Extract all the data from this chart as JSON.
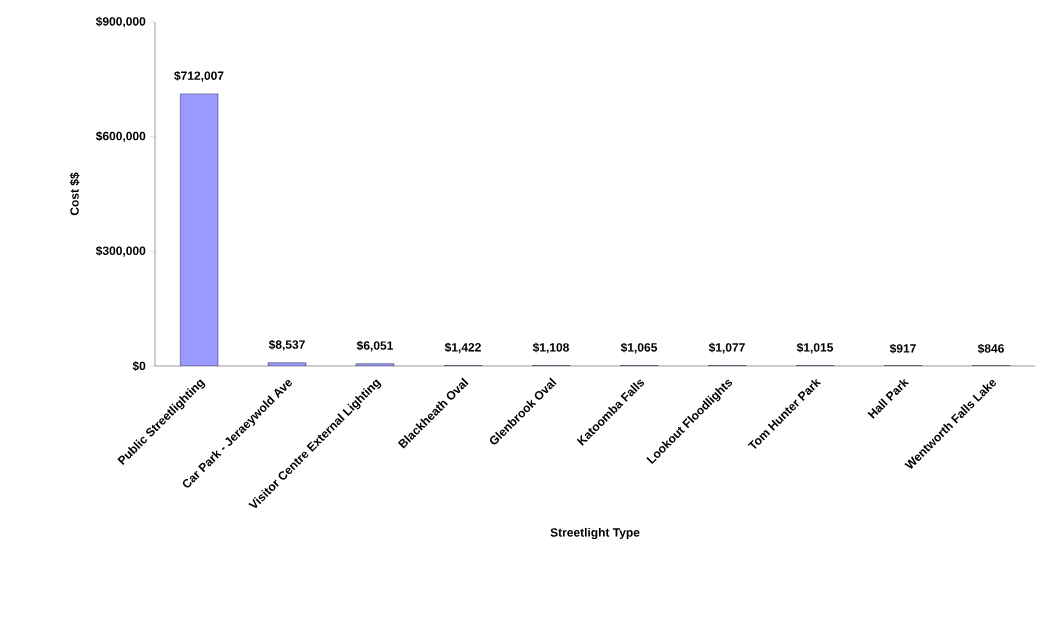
{
  "chart_data": {
    "type": "bar",
    "xlabel": "Streetlight Type",
    "ylabel": "Cost $$",
    "categories": [
      "Public Streetlighting",
      "Car Park - Jeraeywold Ave",
      "Visitor Centre External Lighting",
      "Blackheath Oval",
      "Glenbrook Oval",
      "Katoomba Falls",
      "Lookout Floodlights",
      "Tom Hunter Park",
      "Hall Park",
      "Wentworth Falls Lake"
    ],
    "values": [
      712007,
      8537,
      6051,
      1422,
      1108,
      1065,
      1077,
      1015,
      917,
      846
    ],
    "value_labels": [
      "$712,007",
      "$8,537",
      "$6,051",
      "$1,422",
      "$1,108",
      "$1,065",
      "$1,077",
      "$1,015",
      "$917",
      "$846"
    ],
    "color": "#9999ff",
    "ylim": [
      0,
      900000
    ],
    "yticks": [
      {
        "value": 0,
        "label": "$0"
      },
      {
        "value": 300000,
        "label": "$300,000"
      },
      {
        "value": 600000,
        "label": "$600,000"
      },
      {
        "value": 900000,
        "label": "$900,000"
      }
    ],
    "grid": false
  }
}
